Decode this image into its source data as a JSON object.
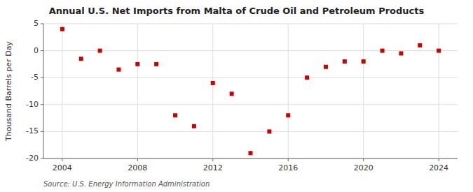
{
  "chart_data": {
    "type": "scatter",
    "title": "Annual U.S. Net Imports from Malta of Crude Oil and Petroleum Products",
    "ylabel": "Thousand Barrels per Day",
    "annotation": "Source: U.S. Energy Information Administration",
    "x": [
      2004,
      2005,
      2006,
      2007,
      2008,
      2009,
      2010,
      2011,
      2012,
      2013,
      2014,
      2015,
      2016,
      2017,
      2018,
      2019,
      2020,
      2021,
      2022,
      2023,
      2024
    ],
    "values": [
      4.0,
      -1.5,
      0.0,
      -3.5,
      -2.5,
      -2.5,
      -12.0,
      -14.0,
      -6.0,
      -8.0,
      -19.0,
      -15.0,
      -12.0,
      -5.0,
      -3.0,
      -2.0,
      -2.0,
      0.0,
      -0.5,
      1.0,
      0.0
    ],
    "color": "#cc0000",
    "marker": "square",
    "xlim": [
      2003.0,
      2025.0
    ],
    "xticks": [
      2004,
      2008,
      2012,
      2016,
      2020,
      2024
    ],
    "ylim": [
      -20,
      5
    ],
    "yticks": [
      -20,
      -15,
      -10,
      -5,
      0,
      5
    ],
    "grid": true
  }
}
